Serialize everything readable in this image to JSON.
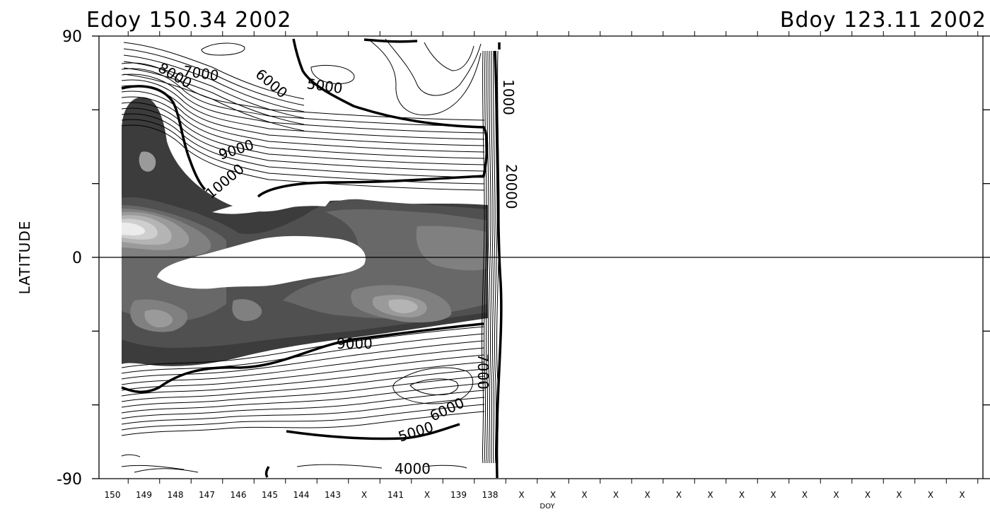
{
  "chart_data": {
    "type": "heatmap",
    "top_left_label": "Edoy 150.34 2002",
    "top_right_label": "Bdoy 123.11 2002",
    "xlabel": "DOY",
    "ylabel": "LATITUDE",
    "ylim": [
      -90,
      90
    ],
    "y_ticks": [
      "90",
      "0",
      "-90"
    ],
    "x_ticks": [
      "150",
      "149",
      "148",
      "147",
      "146",
      "145",
      "144",
      "143",
      "X",
      "141",
      "X",
      "139",
      "138",
      "X",
      "X",
      "X",
      "X",
      "X",
      "X",
      "X",
      "X",
      "X",
      "X",
      "X",
      "X",
      "X",
      "X",
      "X"
    ],
    "data_extent_doy": [
      150,
      138
    ],
    "contour_labels": [
      "8000",
      "7000",
      "6000",
      "5000",
      "1000",
      "9000",
      "10000",
      "20000",
      "9000",
      "7000",
      "6000",
      "5000",
      "4000"
    ],
    "fill_levels": [
      "white",
      "darkest",
      "dark",
      "mid-dark",
      "mid",
      "mid-light",
      "light",
      "lightest"
    ],
    "colors": {
      "darkest": "#3c3c3c",
      "dark": "#505050",
      "mid_dark": "#686868",
      "mid": "#808080",
      "mid_light": "#9a9a9a",
      "light": "#b4b4b4",
      "lighter": "#cecece",
      "lightest": "#ececec",
      "line": "#000000"
    }
  }
}
